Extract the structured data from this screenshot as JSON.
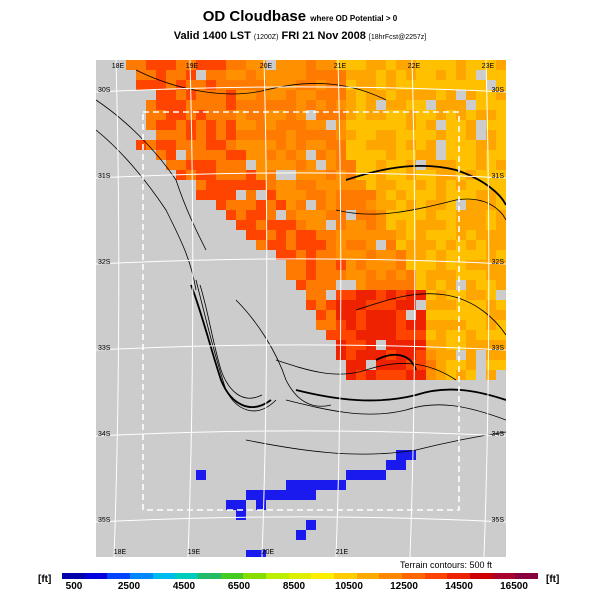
{
  "title": {
    "main": "OD Cloudbase",
    "qualifier": "where OD Potential > 0",
    "valid_prefix": "Valid 1400 LST",
    "valid_utc": "(1200Z)",
    "valid_date": "FRI 21 Nov 2008",
    "forecast_info": "[18hrFcst@2257z]"
  },
  "map": {
    "top_longitudes": [
      "18E",
      "19E",
      "20E",
      "21E",
      "22E",
      "23E"
    ],
    "bottom_longitudes": [
      "18E",
      "19E",
      "20E",
      "21E"
    ],
    "left_latitudes": [
      "30S",
      "31S",
      "32S",
      "33S",
      "34S",
      "35S"
    ],
    "right_latitudes": [
      "30S",
      "31S",
      "32S",
      "33S",
      "34S",
      "35S"
    ],
    "colors": {
      "land_no_data": "#cccccc",
      "ocean_band": "#1a1aee",
      "cloudbase_high": "#ffa500",
      "cloudbase_mid": "#ff7a00",
      "cloudbase_low": "#ff4400",
      "contour": "#000000",
      "dashed_box": "#ffffff"
    }
  },
  "legend": {
    "unit_left": "[ft]",
    "unit_right": "[ft]",
    "terrain_note": "Terrain contours: 500 ft",
    "tick_labels": [
      "500",
      "2500",
      "4500",
      "6500",
      "8500",
      "10500",
      "12500",
      "14500",
      "16500"
    ],
    "colors": [
      "#0000aa",
      "#0000dd",
      "#0044ff",
      "#0088ff",
      "#00bbee",
      "#00ccbb",
      "#22bb66",
      "#44cc22",
      "#88dd00",
      "#bbee00",
      "#ddee00",
      "#ffee00",
      "#ffcc00",
      "#ffaa00",
      "#ff8800",
      "#ff6600",
      "#ff4400",
      "#ee2200",
      "#cc0000",
      "#aa0030",
      "#880040"
    ]
  }
}
